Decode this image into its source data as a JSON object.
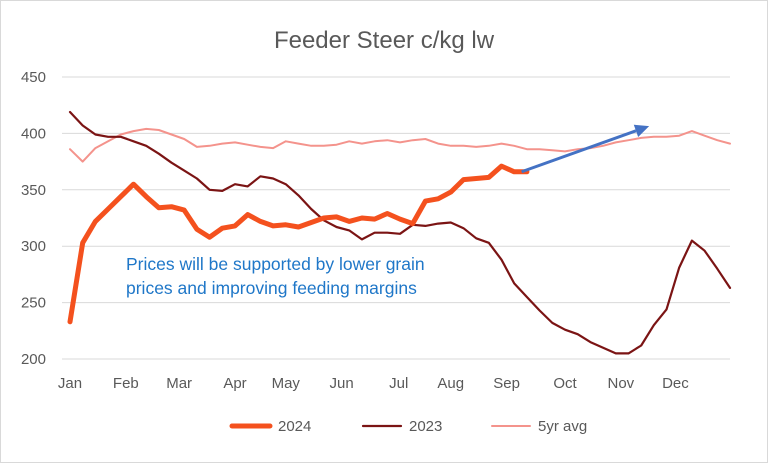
{
  "chart_data": {
    "type": "line",
    "title": "Feeder Steer c/kg lw",
    "ylim": [
      200,
      450
    ],
    "yticks": [
      200,
      250,
      300,
      350,
      400,
      450
    ],
    "xlim": [
      1,
      53
    ],
    "month_labels": [
      {
        "label": "Jan",
        "week": 1
      },
      {
        "label": "Feb",
        "week": 5.4
      },
      {
        "label": "Mar",
        "week": 9.6
      },
      {
        "label": "Apr",
        "week": 14
      },
      {
        "label": "May",
        "week": 18
      },
      {
        "label": "Jun",
        "week": 22.4
      },
      {
        "label": "Jul",
        "week": 26.9
      },
      {
        "label": "Aug",
        "week": 31
      },
      {
        "label": "Sep",
        "week": 35.4
      },
      {
        "label": "Oct",
        "week": 40
      },
      {
        "label": "Nov",
        "week": 44.4
      },
      {
        "label": "Dec",
        "week": 48.7
      }
    ],
    "grid": "horizontal",
    "legend_position": "bottom",
    "series": [
      {
        "name": "2024",
        "color": "#f4511e",
        "stroke": "thick",
        "points": [
          [
            1,
            233
          ],
          [
            2,
            303
          ],
          [
            3,
            322
          ],
          [
            4,
            333
          ],
          [
            5,
            344
          ],
          [
            6,
            355
          ],
          [
            7,
            344
          ],
          [
            8,
            334
          ],
          [
            9,
            335
          ],
          [
            10,
            332
          ],
          [
            11,
            315
          ],
          [
            12,
            308
          ],
          [
            13,
            316
          ],
          [
            14,
            318
          ],
          [
            15,
            328
          ],
          [
            16,
            322
          ],
          [
            17,
            318
          ],
          [
            18,
            319
          ],
          [
            19,
            317
          ],
          [
            20,
            321
          ],
          [
            21,
            325
          ],
          [
            22,
            326
          ],
          [
            23,
            322
          ],
          [
            24,
            325
          ],
          [
            25,
            324
          ],
          [
            26,
            329
          ],
          [
            27,
            324
          ],
          [
            28,
            320
          ],
          [
            29,
            340
          ],
          [
            30,
            342
          ],
          [
            31,
            348
          ],
          [
            32,
            359
          ],
          [
            33,
            360
          ],
          [
            34,
            361
          ],
          [
            35,
            371
          ],
          [
            36,
            366
          ],
          [
            37,
            366
          ]
        ]
      },
      {
        "name": "2023",
        "color": "#7b1414",
        "stroke": "medium",
        "points": [
          [
            1,
            419
          ],
          [
            2,
            407
          ],
          [
            3,
            399
          ],
          [
            4,
            397
          ],
          [
            5,
            397
          ],
          [
            6,
            393
          ],
          [
            7,
            389
          ],
          [
            8,
            382
          ],
          [
            9,
            374
          ],
          [
            10,
            367
          ],
          [
            11,
            360
          ],
          [
            12,
            350
          ],
          [
            13,
            349
          ],
          [
            14,
            355
          ],
          [
            15,
            353
          ],
          [
            16,
            362
          ],
          [
            17,
            360
          ],
          [
            18,
            355
          ],
          [
            19,
            345
          ],
          [
            20,
            333
          ],
          [
            21,
            323
          ],
          [
            22,
            317
          ],
          [
            23,
            314
          ],
          [
            24,
            306
          ],
          [
            25,
            312
          ],
          [
            26,
            312
          ],
          [
            27,
            311
          ],
          [
            28,
            319
          ],
          [
            29,
            318
          ],
          [
            30,
            320
          ],
          [
            31,
            321
          ],
          [
            32,
            316
          ],
          [
            33,
            307
          ],
          [
            34,
            303
          ],
          [
            35,
            288
          ],
          [
            36,
            267
          ],
          [
            37,
            255
          ],
          [
            38,
            243
          ],
          [
            39,
            232
          ],
          [
            40,
            226
          ],
          [
            41,
            222
          ],
          [
            42,
            215
          ],
          [
            43,
            210
          ],
          [
            44,
            205
          ],
          [
            45,
            205
          ],
          [
            46,
            212
          ],
          [
            47,
            230
          ],
          [
            48,
            244
          ],
          [
            49,
            281
          ],
          [
            50,
            305
          ],
          [
            51,
            296
          ],
          [
            52,
            280
          ],
          [
            53,
            263
          ]
        ]
      },
      {
        "name": "5yr avg",
        "color": "#f4938c",
        "stroke": "thin",
        "points": [
          [
            1,
            386
          ],
          [
            2,
            375
          ],
          [
            3,
            387
          ],
          [
            4,
            393
          ],
          [
            5,
            399
          ],
          [
            6,
            402
          ],
          [
            7,
            404
          ],
          [
            8,
            403
          ],
          [
            9,
            399
          ],
          [
            10,
            395
          ],
          [
            11,
            388
          ],
          [
            12,
            389
          ],
          [
            13,
            391
          ],
          [
            14,
            392
          ],
          [
            15,
            390
          ],
          [
            16,
            388
          ],
          [
            17,
            387
          ],
          [
            18,
            393
          ],
          [
            19,
            391
          ],
          [
            20,
            389
          ],
          [
            21,
            389
          ],
          [
            22,
            390
          ],
          [
            23,
            393
          ],
          [
            24,
            391
          ],
          [
            25,
            393
          ],
          [
            26,
            394
          ],
          [
            27,
            392
          ],
          [
            28,
            394
          ],
          [
            29,
            395
          ],
          [
            30,
            391
          ],
          [
            31,
            389
          ],
          [
            32,
            389
          ],
          [
            33,
            388
          ],
          [
            34,
            389
          ],
          [
            35,
            391
          ],
          [
            36,
            389
          ],
          [
            37,
            386
          ],
          [
            38,
            386
          ],
          [
            39,
            385
          ],
          [
            40,
            384
          ],
          [
            41,
            386
          ],
          [
            42,
            387
          ],
          [
            43,
            389
          ],
          [
            44,
            392
          ],
          [
            45,
            394
          ],
          [
            46,
            396
          ],
          [
            47,
            397
          ],
          [
            48,
            397
          ],
          [
            49,
            398
          ],
          [
            50,
            402
          ],
          [
            51,
            398
          ],
          [
            52,
            394
          ],
          [
            53,
            391
          ]
        ]
      }
    ],
    "annotation": {
      "lines": [
        "Prices will be supported by lower grain",
        "prices and improving feeding margins"
      ],
      "color": "#1f77c8"
    },
    "arrow": {
      "color": "#4472c4",
      "from": [
        38,
        366
      ],
      "to": [
        46,
        410
      ]
    }
  }
}
